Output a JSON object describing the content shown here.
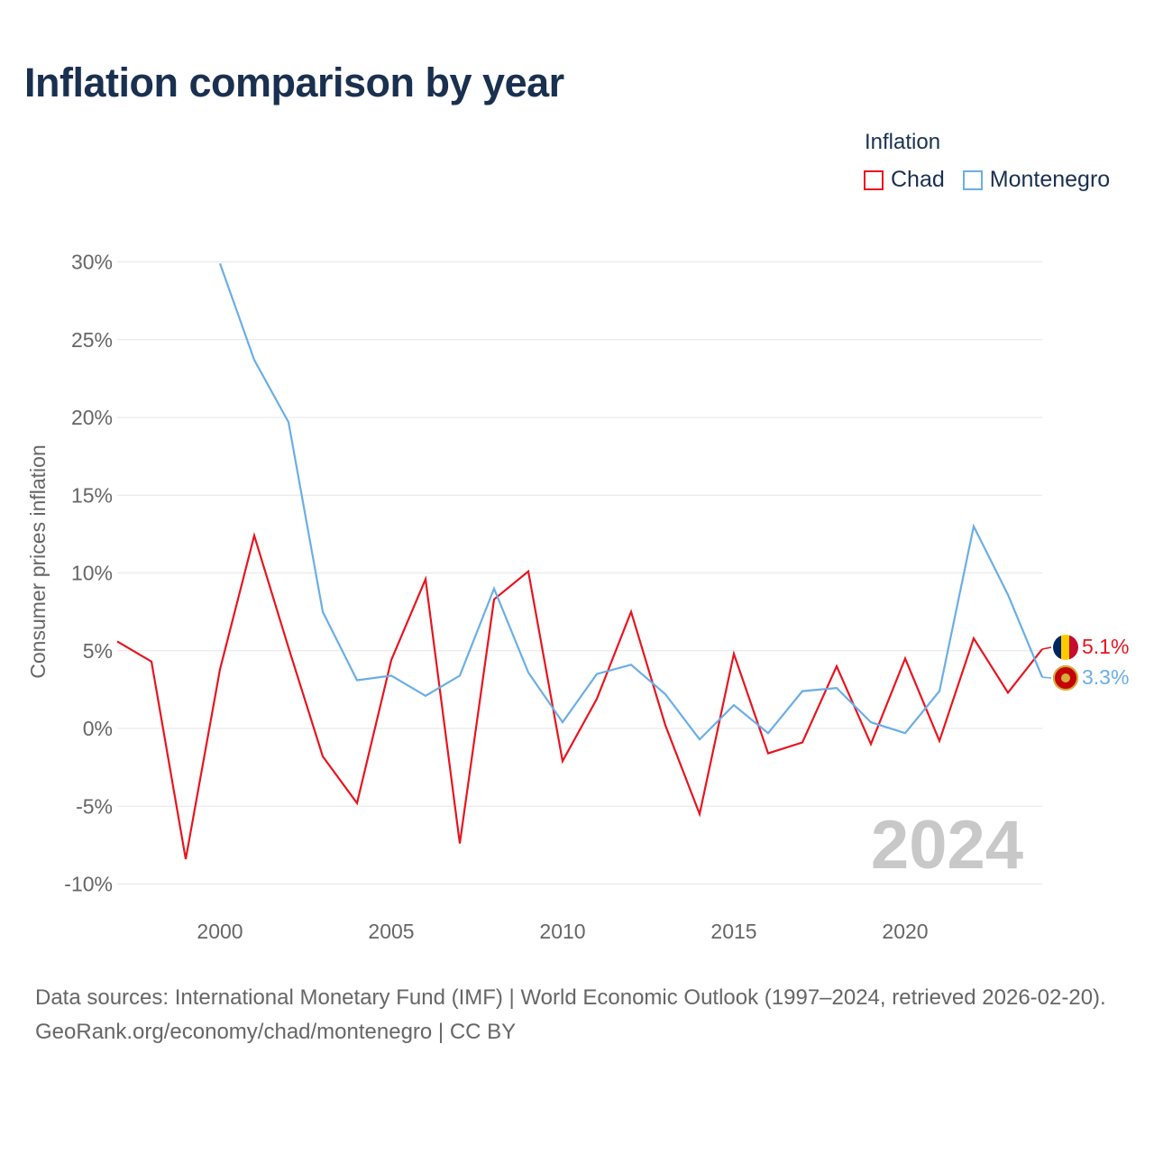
{
  "title": "Inflation comparison by year",
  "legend": {
    "title": "Inflation",
    "items": [
      {
        "name": "Chad",
        "color": "#e8141e"
      },
      {
        "name": "Montenegro",
        "color": "#6aaee6"
      }
    ]
  },
  "footer": {
    "sources": "Data sources: International Monetary Fund (IMF) | World Economic Outlook (1997–2024, retrieved 2026-02-20).",
    "link": "GeoRank.org/economy/chad/montenegro | CC BY"
  },
  "chart_data": {
    "type": "line",
    "title": "Inflation comparison by year",
    "xlabel": "",
    "ylabel": "Consumer prices inflation",
    "xlim": [
      1997,
      2024
    ],
    "ylim": [
      -11.5,
      30
    ],
    "yticks": [
      30,
      25,
      20,
      15,
      10,
      5,
      0,
      -5,
      -10
    ],
    "ytick_labels": [
      "30%",
      "25%",
      "20%",
      "15%",
      "10%",
      "5%",
      "0%",
      "-5%",
      "-10%"
    ],
    "xticks": [
      2000,
      2005,
      2010,
      2015,
      2020
    ],
    "xtick_labels": [
      "2000",
      "2005",
      "2010",
      "2015",
      "2020"
    ],
    "grid": true,
    "year_watermark": "2024",
    "series": [
      {
        "name": "Chad",
        "color": "#e8141e",
        "end_label": "5.1%",
        "x": [
          1997,
          1998,
          1999,
          2000,
          2001,
          2002,
          2003,
          2004,
          2005,
          2006,
          2007,
          2008,
          2009,
          2010,
          2011,
          2012,
          2013,
          2014,
          2015,
          2016,
          2017,
          2018,
          2019,
          2020,
          2021,
          2022,
          2023,
          2024
        ],
        "values": [
          5.6,
          4.3,
          -8.4,
          3.8,
          12.4,
          5.2,
          -1.8,
          -4.8,
          4.4,
          9.6,
          -7.4,
          8.3,
          10.1,
          -2.1,
          1.9,
          7.5,
          0.2,
          -5.5,
          4.8,
          -1.6,
          -0.9,
          4.0,
          -1.0,
          4.5,
          -0.8,
          5.8,
          2.3,
          5.1
        ]
      },
      {
        "name": "Montenegro",
        "color": "#6aaee6",
        "end_label": "3.3%",
        "x": [
          2000,
          2001,
          2002,
          2003,
          2004,
          2005,
          2006,
          2007,
          2008,
          2009,
          2010,
          2011,
          2012,
          2013,
          2014,
          2015,
          2016,
          2017,
          2018,
          2019,
          2020,
          2021,
          2022,
          2023,
          2024
        ],
        "values": [
          29.9,
          23.7,
          19.7,
          7.5,
          3.1,
          3.4,
          2.1,
          3.4,
          9.0,
          3.6,
          0.4,
          3.5,
          4.1,
          2.2,
          -0.7,
          1.5,
          -0.3,
          2.4,
          2.6,
          0.4,
          -0.3,
          2.4,
          13.0,
          8.6,
          3.3
        ]
      }
    ]
  }
}
